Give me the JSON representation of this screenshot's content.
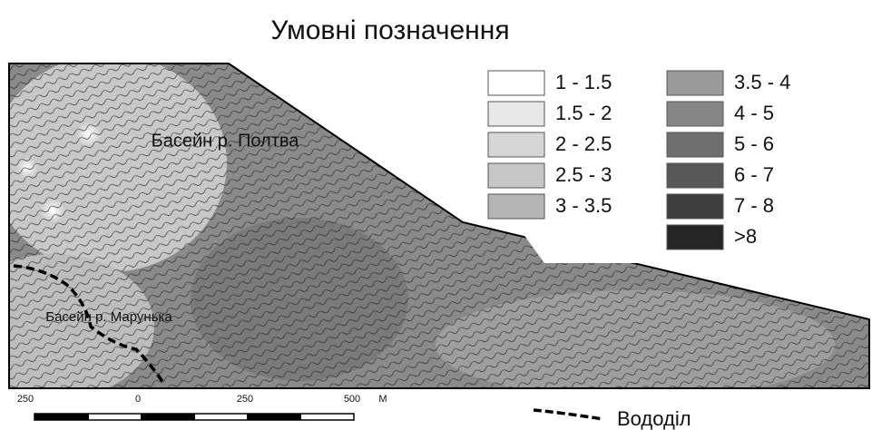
{
  "title": "Умовні позначення",
  "legend": {
    "items": [
      {
        "label": "1 - 1.5",
        "color": "#ffffff"
      },
      {
        "label": "1.5 - 2",
        "color": "#e8e8e8"
      },
      {
        "label": "2 - 2.5",
        "color": "#d6d6d6"
      },
      {
        "label": "2.5 - 3",
        "color": "#c6c6c6"
      },
      {
        "label": "3 - 3.5",
        "color": "#b4b4b4"
      },
      {
        "label": "3.5 - 4",
        "color": "#9a9a9a"
      },
      {
        "label": "4 - 5",
        "color": "#868686"
      },
      {
        "label": "5 - 6",
        "color": "#6e6e6e"
      },
      {
        "label": "6 - 7",
        "color": "#575757"
      },
      {
        "label": "7 - 8",
        "color": "#3e3e3e"
      },
      {
        "label": ">8",
        "color": "#262626"
      }
    ]
  },
  "map_labels": [
    "Басейн р. Полтва",
    "Басейн р. Марунька"
  ],
  "scale_bar": {
    "labels": [
      "250",
      "0",
      "250",
      "500",
      "М"
    ]
  },
  "watershed_label": "Вододіл"
}
